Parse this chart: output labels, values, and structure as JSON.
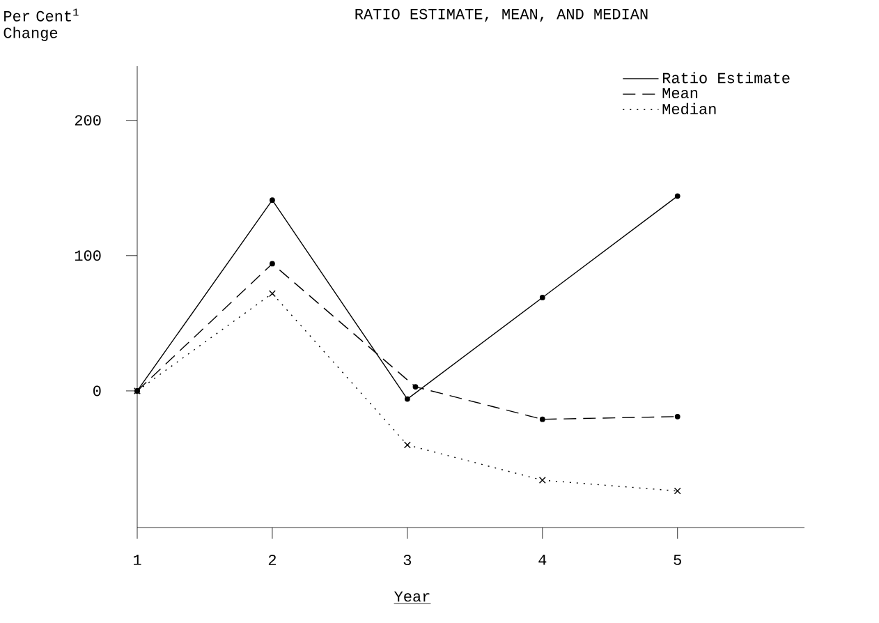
{
  "chart_data": {
    "type": "line",
    "title": "RATIO ESTIMATE, MEAN, AND MEDIAN",
    "xlabel": "Year",
    "ylabel": "Per Cent$^{1}$ Change",
    "x": [
      1,
      2,
      3,
      4,
      5
    ],
    "series": [
      {
        "name": "Ratio Estimate",
        "color": "#000000",
        "values": [
          0,
          141,
          -6,
          69,
          144
        ],
        "line_style": "solid",
        "marker": "circle"
      },
      {
        "name": "Mean",
        "color": "#000000",
        "x": [
          1,
          2,
          3.06,
          4,
          5
        ],
        "values": [
          0,
          94,
          3,
          -21,
          -19
        ],
        "line_style": "dashed",
        "marker": "circle"
      },
      {
        "name": "Median",
        "color": "#000000",
        "values": [
          0,
          72,
          -40,
          -66,
          -74
        ],
        "line_style": "dotted",
        "marker": "cross"
      }
    ],
    "xlim": [
      1,
      5.94
    ],
    "ylim": [
      -101,
      240
    ],
    "xticks": [
      1,
      2,
      3,
      4,
      5
    ],
    "yticks": [
      0,
      100,
      200
    ],
    "grid": false,
    "legend": "top right"
  }
}
